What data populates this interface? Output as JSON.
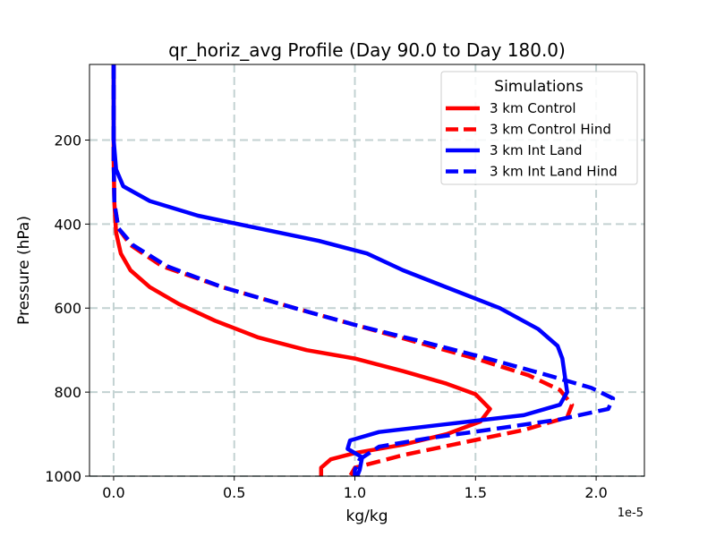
{
  "chart_data": {
    "type": "line",
    "title": "qr_horiz_avg Profile (Day 90.0 to Day 180.0)",
    "xlabel": "kg/kg",
    "ylabel": "Pressure (hPa)",
    "x_offset_label": "1e-5",
    "xlim": [
      -0.1,
      2.2
    ],
    "ylim": [
      1000,
      20
    ],
    "y_inverted": true,
    "x_ticks": [
      0.0,
      0.5,
      1.0,
      1.5,
      2.0
    ],
    "x_tick_labels": [
      "0.0",
      "0.5",
      "1.0",
      "1.5",
      "2.0"
    ],
    "y_ticks": [
      200,
      400,
      600,
      800,
      1000
    ],
    "y_tick_labels": [
      "200",
      "400",
      "600",
      "800",
      "1000"
    ],
    "grid": true,
    "legend": {
      "title": "Simulations",
      "placement": "top-right"
    },
    "series": [
      {
        "name": "3 km Control",
        "color": "#ff0000",
        "dashed": false,
        "points": [
          [
            0.0,
            20
          ],
          [
            0.0,
            150
          ],
          [
            0.0,
            250
          ],
          [
            0.003,
            350
          ],
          [
            0.01,
            420
          ],
          [
            0.03,
            470
          ],
          [
            0.07,
            510
          ],
          [
            0.15,
            550
          ],
          [
            0.27,
            590
          ],
          [
            0.42,
            630
          ],
          [
            0.6,
            670
          ],
          [
            0.8,
            700
          ],
          [
            1.0,
            720
          ],
          [
            1.2,
            750
          ],
          [
            1.38,
            780
          ],
          [
            1.5,
            805
          ],
          [
            1.56,
            840
          ],
          [
            1.52,
            870
          ],
          [
            1.38,
            900
          ],
          [
            1.2,
            925
          ],
          [
            1.0,
            945
          ],
          [
            0.9,
            960
          ],
          [
            0.86,
            980
          ],
          [
            0.86,
            1000
          ]
        ]
      },
      {
        "name": "3 km Control Hind",
        "color": "#ff0000",
        "dashed": true,
        "points": [
          [
            0.0,
            20
          ],
          [
            0.0,
            250
          ],
          [
            0.003,
            350
          ],
          [
            0.02,
            410
          ],
          [
            0.07,
            450
          ],
          [
            0.2,
            500
          ],
          [
            0.45,
            550
          ],
          [
            0.75,
            600
          ],
          [
            1.0,
            640
          ],
          [
            1.25,
            680
          ],
          [
            1.5,
            720
          ],
          [
            1.72,
            760
          ],
          [
            1.85,
            795
          ],
          [
            1.9,
            830
          ],
          [
            1.88,
            860
          ],
          [
            1.7,
            890
          ],
          [
            1.45,
            920
          ],
          [
            1.2,
            950
          ],
          [
            1.0,
            980
          ],
          [
            0.98,
            1000
          ]
        ]
      },
      {
        "name": "3 km Int Land",
        "color": "#0000ff",
        "dashed": false,
        "points": [
          [
            0.0,
            20
          ],
          [
            0.0,
            200
          ],
          [
            0.01,
            270
          ],
          [
            0.04,
            310
          ],
          [
            0.15,
            345
          ],
          [
            0.35,
            380
          ],
          [
            0.6,
            410
          ],
          [
            0.85,
            440
          ],
          [
            1.05,
            470
          ],
          [
            1.2,
            510
          ],
          [
            1.4,
            555
          ],
          [
            1.6,
            600
          ],
          [
            1.76,
            650
          ],
          [
            1.84,
            690
          ],
          [
            1.86,
            720
          ],
          [
            1.87,
            760
          ],
          [
            1.88,
            800
          ],
          [
            1.85,
            830
          ],
          [
            1.7,
            855
          ],
          [
            1.4,
            875
          ],
          [
            1.1,
            895
          ],
          [
            0.98,
            915
          ],
          [
            0.97,
            935
          ],
          [
            1.03,
            955
          ],
          [
            1.02,
            985
          ],
          [
            1.01,
            1000
          ]
        ]
      },
      {
        "name": "3 km Int Land Hind",
        "color": "#0000ff",
        "dashed": true,
        "points": [
          [
            0.0,
            20
          ],
          [
            0.0,
            250
          ],
          [
            0.003,
            350
          ],
          [
            0.02,
            410
          ],
          [
            0.08,
            450
          ],
          [
            0.22,
            500
          ],
          [
            0.45,
            550
          ],
          [
            0.75,
            600
          ],
          [
            1.0,
            640
          ],
          [
            1.28,
            680
          ],
          [
            1.55,
            720
          ],
          [
            1.8,
            760
          ],
          [
            1.98,
            790
          ],
          [
            2.07,
            815
          ],
          [
            2.05,
            840
          ],
          [
            1.85,
            865
          ],
          [
            1.55,
            890
          ],
          [
            1.3,
            910
          ],
          [
            1.1,
            930
          ],
          [
            1.02,
            960
          ],
          [
            1.0,
            985
          ],
          [
            1.0,
            1000
          ]
        ]
      }
    ]
  }
}
